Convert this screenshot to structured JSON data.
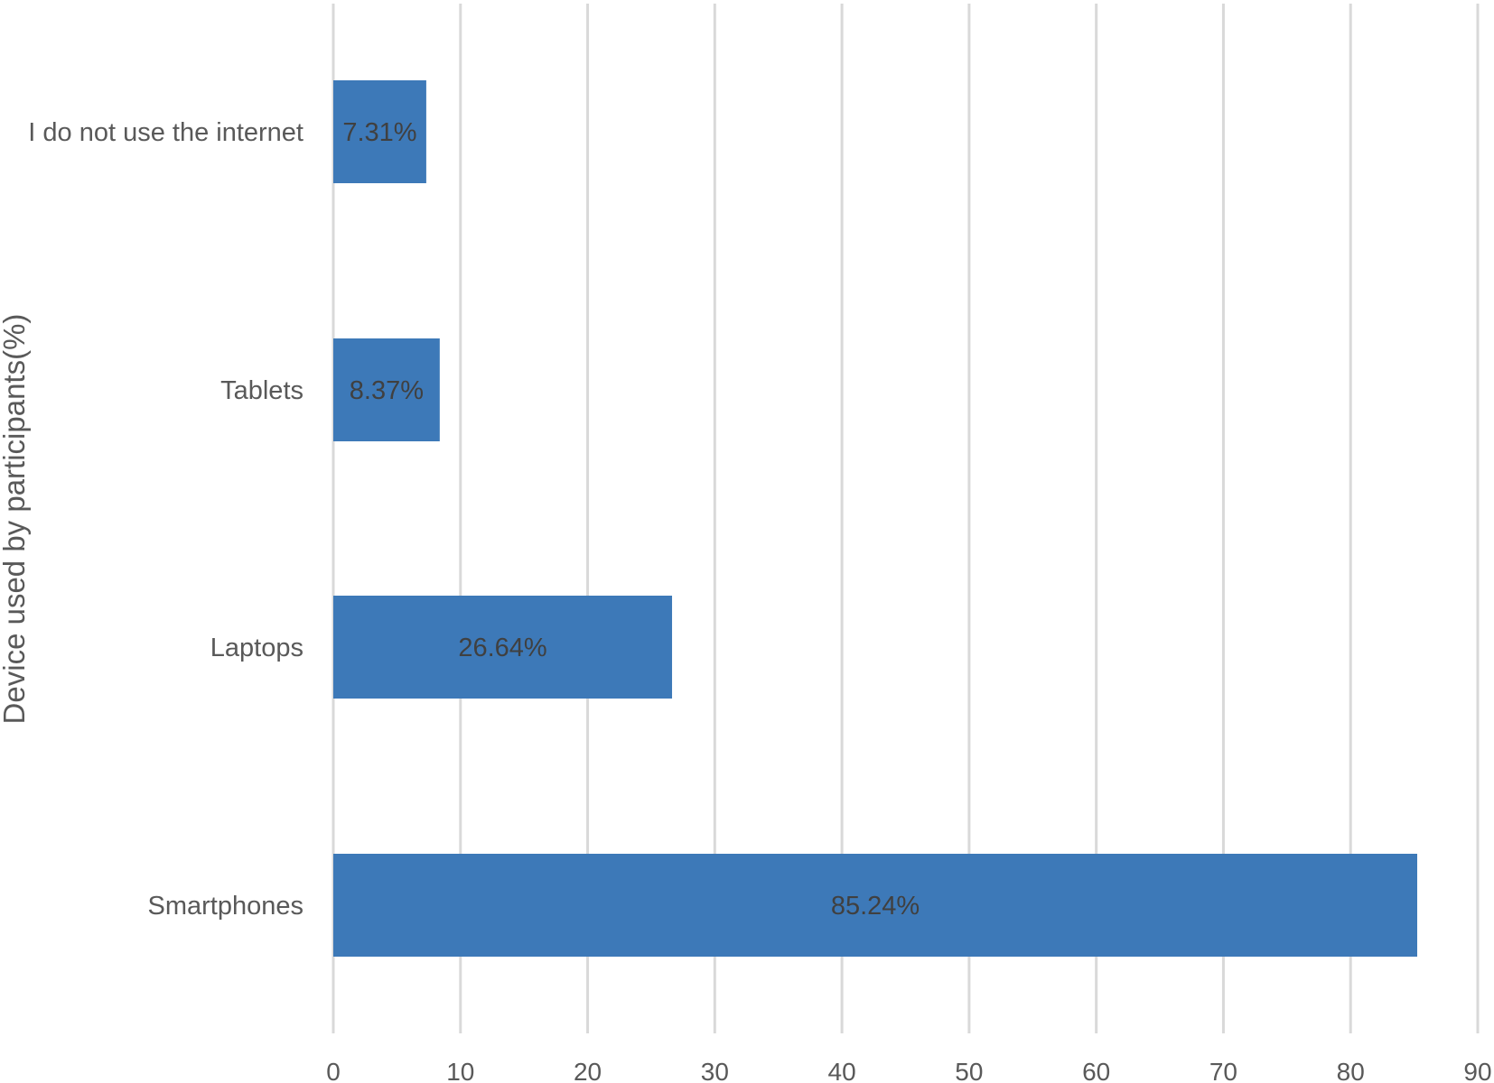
{
  "chart_data": {
    "type": "bar",
    "orientation": "horizontal",
    "title": "",
    "xlabel": "",
    "ylabel": "Device used by participants(%)",
    "categories": [
      "I do not use the internet",
      "Tablets",
      "Laptops",
      "Smartphones"
    ],
    "values": [
      7.31,
      8.37,
      26.64,
      85.24
    ],
    "data_labels": [
      "7.31%",
      "8.37%",
      "26.64%",
      "85.24%"
    ],
    "xlim": [
      0,
      90
    ],
    "xticks": [
      0,
      10,
      20,
      30,
      40,
      50,
      60,
      70,
      80,
      90
    ],
    "grid": "vertical",
    "legend": "none",
    "bar_color": "#3d79b8",
    "grid_color": "#d9d9d9"
  }
}
